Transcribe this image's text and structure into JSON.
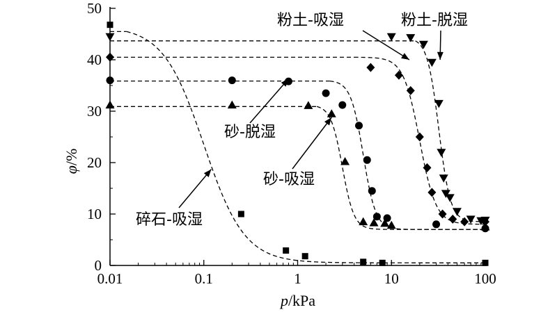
{
  "chart_data": {
    "type": "scatter",
    "xlabel_var": "p",
    "xlabel_unit": "/kPa",
    "ylabel_var": "φ",
    "ylabel_unit": "/%",
    "x_scale": "log",
    "xlim": [
      0.01,
      100
    ],
    "ylim": [
      0,
      50
    ],
    "x_ticks": [
      0.01,
      0.1,
      1,
      10,
      100
    ],
    "x_tick_labels": [
      "0.01",
      "0.1",
      "1",
      "10",
      "100"
    ],
    "y_ticks": [
      0,
      10,
      20,
      30,
      40,
      50
    ],
    "y_tick_labels": [
      "0",
      "10",
      "20",
      "30",
      "40",
      "50"
    ],
    "grid": false,
    "series": [
      {
        "name": "碎石-吸湿",
        "marker": "square",
        "points": [
          [
            0.01,
            46.8
          ],
          [
            0.25,
            10.0
          ],
          [
            0.75,
            2.9
          ],
          [
            1.2,
            1.8
          ],
          [
            5.0,
            0.7
          ],
          [
            8.0,
            0.5
          ],
          [
            100,
            0.5
          ]
        ],
        "fit": {
          "theta_s": 46.5,
          "theta_r": 0.5,
          "x50": 0.1,
          "slope": 2.0
        },
        "plateau_x": 0.015
      },
      {
        "name": "砂-脱湿",
        "marker": "circle",
        "points": [
          [
            0.01,
            36.0
          ],
          [
            0.2,
            36.0
          ],
          [
            0.8,
            35.8
          ],
          [
            2.0,
            33.5
          ],
          [
            3.0,
            31.2
          ],
          [
            4.5,
            27.2
          ],
          [
            5.5,
            20.5
          ],
          [
            6.2,
            14.5
          ],
          [
            7.0,
            9.5
          ],
          [
            9.0,
            9.2
          ],
          [
            30,
            8.0
          ],
          [
            100,
            7.2
          ]
        ],
        "fit": {
          "theta_s": 36.0,
          "theta_r": 7.0,
          "x50": 5.0,
          "slope": 6.5
        },
        "plateau_x": 2.2
      },
      {
        "name": "砂-吸湿",
        "marker": "triangle-up",
        "points": [
          [
            0.01,
            31.2
          ],
          [
            0.2,
            31.2
          ],
          [
            1.3,
            31.1
          ],
          [
            2.3,
            29.5
          ],
          [
            3.2,
            20.2
          ],
          [
            5.0,
            8.5
          ],
          [
            6.5,
            8.3
          ],
          [
            8.5,
            8.2
          ],
          [
            10,
            7.8
          ],
          [
            100,
            7.5
          ]
        ],
        "fit": {
          "theta_s": 31.2,
          "theta_r": 7.0,
          "x50": 3.0,
          "slope": 7.0
        },
        "plateau_x": 1.6
      },
      {
        "name": "粉土-吸湿",
        "marker": "diamond",
        "points": [
          [
            0.01,
            40.5
          ],
          [
            6.0,
            38.5
          ],
          [
            12.0,
            37.0
          ],
          [
            16.0,
            34.0
          ],
          [
            20.0,
            25.0
          ],
          [
            24.0,
            19.0
          ],
          [
            27.0,
            14.2
          ],
          [
            35.0,
            10.0
          ],
          [
            45.0,
            9.0
          ],
          [
            60.0,
            8.5
          ],
          [
            100,
            8.5
          ]
        ],
        "fit": {
          "theta_s": 40.5,
          "theta_r": 8.0,
          "x50": 20.0,
          "slope": 5.0
        },
        "plateau_x": 4.0
      },
      {
        "name": "粉土-脱湿",
        "marker": "triangle-down",
        "points": [
          [
            0.01,
            44.5
          ],
          [
            10.0,
            44.5
          ],
          [
            16.0,
            44.3
          ],
          [
            22.0,
            43.0
          ],
          [
            27.0,
            39.5
          ],
          [
            32.0,
            31.5
          ],
          [
            34.0,
            22.0
          ],
          [
            36.0,
            17.0
          ],
          [
            38.0,
            14.0
          ],
          [
            42.0,
            13.2
          ],
          [
            50.0,
            10.5
          ],
          [
            70.0,
            9.0
          ],
          [
            90.0,
            8.7
          ],
          [
            100,
            8.8
          ]
        ],
        "fit": {
          "theta_s": 44.3,
          "theta_r": 8.5,
          "x50": 32.0,
          "slope": 7.0
        },
        "plateau_x": 18.0
      }
    ],
    "annotations": [
      {
        "text": "粉土-吸湿",
        "arrow_to": [
          15.5,
          40.0
        ]
      },
      {
        "text": "粉土-脱湿",
        "arrow_to": [
          33.0,
          40.0
        ]
      },
      {
        "text": "砂-脱湿",
        "arrow_to": [
          0.8,
          36.3
        ]
      },
      {
        "text": "砂-吸湿",
        "arrow_to": [
          2.3,
          28.8
        ]
      },
      {
        "text": "碎石-吸湿",
        "arrow_to": [
          0.12,
          18.7
        ]
      }
    ]
  }
}
